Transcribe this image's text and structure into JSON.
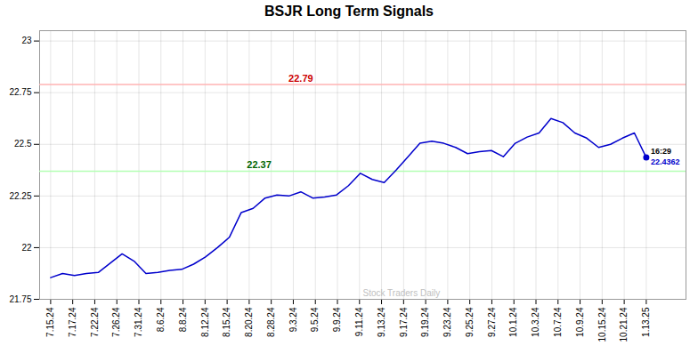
{
  "chart_data": {
    "type": "line",
    "title": "BSJR Long Term Signals",
    "color": "#0000cc",
    "grid": true,
    "x": [
      0,
      0.54,
      1.08,
      1.62,
      2.16,
      2.7,
      3.24,
      3.78,
      4.32,
      4.86,
      5.4,
      5.94,
      6.48,
      7.02,
      7.56,
      8.1,
      8.64,
      9.18,
      9.72,
      10.26,
      10.8,
      11.34,
      11.88,
      12.42,
      12.96,
      13.5,
      14.04,
      14.58,
      15.12,
      15.66,
      16.2,
      16.74,
      17.28,
      17.82,
      18.36,
      18.9,
      19.44,
      19.98,
      20.52,
      21.06,
      21.6,
      22.14,
      22.68,
      23.22,
      23.76,
      24.3,
      24.84,
      25.38,
      25.92,
      26.46,
      27.0
    ],
    "values": [
      21.855,
      21.875,
      21.865,
      21.875,
      21.88,
      21.925,
      21.97,
      21.935,
      21.875,
      21.88,
      21.89,
      21.895,
      21.92,
      21.955,
      22.0,
      22.05,
      22.17,
      22.19,
      22.24,
      22.255,
      22.25,
      22.27,
      22.24,
      22.245,
      22.255,
      22.3,
      22.36,
      22.33,
      22.315,
      22.375,
      22.44,
      22.505,
      22.515,
      22.505,
      22.485,
      22.455,
      22.465,
      22.47,
      22.44,
      22.505,
      22.535,
      22.555,
      22.625,
      22.605,
      22.555,
      22.53,
      22.485,
      22.5,
      22.53,
      22.555,
      22.4362
    ],
    "xlim": [
      -0.5,
      28.8
    ],
    "xticks": [
      {
        "value": 0,
        "label": "7.15.24"
      },
      {
        "value": 1,
        "label": "7.17.24"
      },
      {
        "value": 2,
        "label": "7.22.24"
      },
      {
        "value": 3,
        "label": "7.26.24"
      },
      {
        "value": 4,
        "label": "7.31.24"
      },
      {
        "value": 5,
        "label": "8.6.24"
      },
      {
        "value": 6,
        "label": "8.8.24"
      },
      {
        "value": 7,
        "label": "8.12.24"
      },
      {
        "value": 8,
        "label": "8.15.24"
      },
      {
        "value": 9,
        "label": "8.20.24"
      },
      {
        "value": 10,
        "label": "8.28.24"
      },
      {
        "value": 11,
        "label": "9.3.24"
      },
      {
        "value": 12,
        "label": "9.5.24"
      },
      {
        "value": 13,
        "label": "9.9.24"
      },
      {
        "value": 14,
        "label": "9.11.24"
      },
      {
        "value": 15,
        "label": "9.13.24"
      },
      {
        "value": 16,
        "label": "9.17.24"
      },
      {
        "value": 17,
        "label": "9.19.24"
      },
      {
        "value": 18,
        "label": "9.23.24"
      },
      {
        "value": 19,
        "label": "9.25.24"
      },
      {
        "value": 20,
        "label": "9.27.24"
      },
      {
        "value": 21,
        "label": "10.1.24"
      },
      {
        "value": 22,
        "label": "10.3.24"
      },
      {
        "value": 23,
        "label": "10.7.24"
      },
      {
        "value": 24,
        "label": "10.9.24"
      },
      {
        "value": 25,
        "label": "10.15.24"
      },
      {
        "value": 26,
        "label": "10.21.24"
      },
      {
        "value": 27,
        "label": "1.13.25"
      }
    ],
    "ylim": [
      21.75,
      23.05
    ],
    "yticks": [
      21.75,
      22,
      22.25,
      22.5,
      22.75,
      23
    ],
    "reference_lines": [
      {
        "value": 22.79,
        "label": "22.79",
        "color": "#ffb3b3",
        "label_color": "#cc0000"
      },
      {
        "value": 22.37,
        "label": "22.37",
        "color": "#b3ffb3",
        "label_color": "#006600"
      }
    ],
    "end_label": {
      "time": "16:29",
      "value_label": "22.4362",
      "color": "#0000cc"
    },
    "watermark": "Stock Traders Daily"
  }
}
